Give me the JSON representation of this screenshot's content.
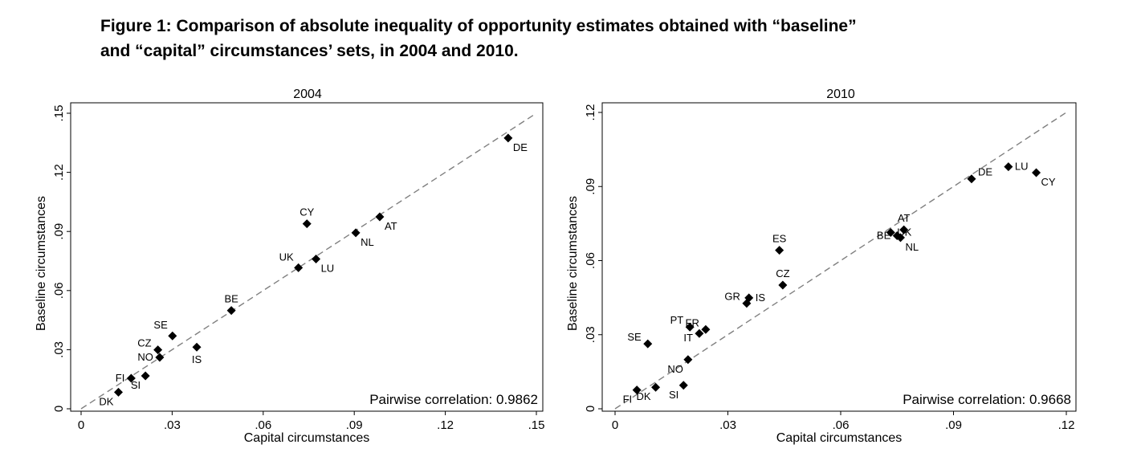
{
  "figure": {
    "title_line1": "Figure 1: Comparison of absolute inequality of opportunity estimates obtained with “baseline”",
    "title_line2": "and “capital” circumstances’ sets, in 2004 and 2010."
  },
  "chart_data": [
    {
      "type": "scatter",
      "title": "2004",
      "xlabel": "Capital circumstances",
      "ylabel": "Baseline circumstances",
      "xlim": [
        0,
        0.15
      ],
      "ylim": [
        0,
        0.15
      ],
      "xticks": [
        "0",
        ".03",
        ".06",
        ".09",
        ".12",
        ".15"
      ],
      "yticks": [
        "0",
        ".03",
        ".06",
        ".09",
        ".12",
        ".15"
      ],
      "reference_line": "45-degree dashed",
      "annotation": "Pairwise correlation: 0.9862",
      "marker_color": "#000000",
      "line_color": "#808080",
      "points": [
        {
          "label": "DK",
          "x": 0.0123,
          "y": 0.0084,
          "pos": 7
        },
        {
          "label": "FI",
          "x": 0.0165,
          "y": 0.0155,
          "pos": 9
        },
        {
          "label": "SI",
          "x": 0.0212,
          "y": 0.0167,
          "pos": 7
        },
        {
          "label": "NO",
          "x": 0.0259,
          "y": 0.0261,
          "pos": 9
        },
        {
          "label": "CZ",
          "x": 0.0253,
          "y": 0.0299,
          "pos": 10
        },
        {
          "label": "SE",
          "x": 0.0301,
          "y": 0.037,
          "pos": 11
        },
        {
          "label": "IS",
          "x": 0.0381,
          "y": 0.0313,
          "pos": 6
        },
        {
          "label": "BE",
          "x": 0.0495,
          "y": 0.0499,
          "pos": 12
        },
        {
          "label": "UK",
          "x": 0.0716,
          "y": 0.0716,
          "pos": 11
        },
        {
          "label": "LU",
          "x": 0.0774,
          "y": 0.076,
          "pos": 5
        },
        {
          "label": "CY",
          "x": 0.0744,
          "y": 0.0939,
          "pos": 12
        },
        {
          "label": "NL",
          "x": 0.0905,
          "y": 0.0893,
          "pos": 5
        },
        {
          "label": "AT",
          "x": 0.0984,
          "y": 0.0974,
          "pos": 5
        },
        {
          "label": "DE",
          "x": 0.1407,
          "y": 0.1374,
          "pos": 5
        }
      ]
    },
    {
      "type": "scatter",
      "title": "2010",
      "xlabel": "Capital circumstances",
      "ylabel": "Baseline circumstances",
      "xlim": [
        0,
        0.12
      ],
      "ylim": [
        0,
        0.12
      ],
      "xticks": [
        "0",
        ".03",
        ".06",
        ".09",
        ".12"
      ],
      "yticks": [
        "0",
        ".03",
        ".06",
        ".09",
        ".12"
      ],
      "reference_line": "45-degree dashed",
      "annotation": "Pairwise correlation: 0.9668",
      "marker_color": "#000000",
      "line_color": "#808080",
      "points": [
        {
          "label": "FI",
          "x": 0.0058,
          "y": 0.0076,
          "pos": 7
        },
        {
          "label": "DK",
          "x": 0.0108,
          "y": 0.0087,
          "pos": 7
        },
        {
          "label": "SI",
          "x": 0.0182,
          "y": 0.0095,
          "pos": 7
        },
        {
          "label": "NO",
          "x": 0.0194,
          "y": 0.0199,
          "pos": 7
        },
        {
          "label": "SE",
          "x": 0.0087,
          "y": 0.0263,
          "pos": 10
        },
        {
          "label": "PT",
          "x": 0.0199,
          "y": 0.0331,
          "pos": 10
        },
        {
          "label": "IT",
          "x": 0.0224,
          "y": 0.0305,
          "pos": 8
        },
        {
          "label": "FR",
          "x": 0.0241,
          "y": 0.0321,
          "pos": 10
        },
        {
          "label": "GR",
          "x": 0.035,
          "y": 0.0427,
          "pos": 10
        },
        {
          "label": "IS",
          "x": 0.0356,
          "y": 0.0449,
          "pos": 11
        },
        {
          "label": "ES",
          "x": 0.0437,
          "y": 0.0642,
          "pos": 12
        },
        {
          "label": "CZ",
          "x": 0.0446,
          "y": 0.0501,
          "pos": 12
        },
        {
          "label": "UK",
          "x": 0.0733,
          "y": 0.0714,
          "pos": 3
        },
        {
          "label": "AT",
          "x": 0.0768,
          "y": 0.0725,
          "pos": 3
        },
        {
          "label": "BE",
          "x": 0.075,
          "y": 0.0701,
          "pos": 3
        },
        {
          "label": "NL",
          "x": 0.0759,
          "y": 0.0693,
          "pos": 5
        },
        {
          "label": "DE",
          "x": 0.0948,
          "y": 0.0931,
          "pos": 2
        },
        {
          "label": "LU",
          "x": 0.1046,
          "y": 0.098,
          "pos": 3
        },
        {
          "label": "CY",
          "x": 0.112,
          "y": 0.0956,
          "pos": 5
        }
      ]
    }
  ]
}
